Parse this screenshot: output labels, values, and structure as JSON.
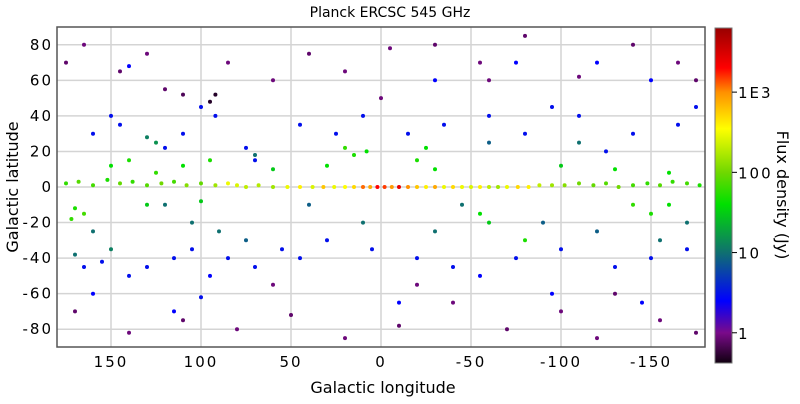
{
  "chart_data": {
    "type": "scatter",
    "title": "Planck ERCSC 545 GHz",
    "xlabel": "Galactic longitude",
    "ylabel": "Galactic latitude",
    "xlim": [
      180,
      -180
    ],
    "ylim": [
      -90,
      90
    ],
    "x_reversed": true,
    "grid": true,
    "xticks": [
      150,
      100,
      50,
      0,
      -50,
      -100,
      -150
    ],
    "xtick_labels": [
      "150",
      "100",
      "50",
      "0",
      "-50",
      "-100",
      "-150"
    ],
    "yticks": [
      80,
      60,
      40,
      20,
      0,
      -20,
      -40,
      -60,
      -80
    ],
    "ytick_labels": [
      "80",
      "60",
      "40",
      "20",
      "0",
      "-20",
      "-40",
      "-60",
      "-80"
    ],
    "colorbar": {
      "label": "Flux density (Jy)",
      "scale": "log",
      "range": [
        0.42,
        6300
      ],
      "ticks": [
        1,
        10,
        100,
        1000
      ],
      "tick_labels": [
        "1",
        "10",
        "100",
        "1E3"
      ],
      "colormap": [
        {
          "value": 0.42,
          "color": "#100010"
        },
        {
          "value": 1,
          "color": "#7a0a8a"
        },
        {
          "value": 2.5,
          "color": "#0000ff"
        },
        {
          "value": 10,
          "color": "#0f7070"
        },
        {
          "value": 40,
          "color": "#00e000"
        },
        {
          "value": 100,
          "color": "#70d800"
        },
        {
          "value": 350,
          "color": "#ffff00"
        },
        {
          "value": 1000,
          "color": "#ff9000"
        },
        {
          "value": 2000,
          "color": "#ff0000"
        },
        {
          "value": 6300,
          "color": "#990000"
        }
      ]
    },
    "point_fields": [
      "longitude",
      "latitude",
      "flux_jy"
    ],
    "points": [
      [
        175,
        2,
        60
      ],
      [
        168,
        3,
        80
      ],
      [
        160,
        1,
        70
      ],
      [
        152,
        4,
        50
      ],
      [
        145,
        2,
        90
      ],
      [
        138,
        3,
        60
      ],
      [
        130,
        1,
        80
      ],
      [
        122,
        2,
        100
      ],
      [
        115,
        3,
        70
      ],
      [
        108,
        1,
        120
      ],
      [
        100,
        2,
        90
      ],
      [
        92,
        1,
        150
      ],
      [
        85,
        2,
        300
      ],
      [
        80,
        1,
        250
      ],
      [
        75,
        0,
        200
      ],
      [
        68,
        1,
        180
      ],
      [
        60,
        0,
        150
      ],
      [
        52,
        0,
        300
      ],
      [
        45,
        0,
        400
      ],
      [
        38,
        0,
        250
      ],
      [
        32,
        0,
        600
      ],
      [
        26,
        0,
        300
      ],
      [
        20,
        0,
        350
      ],
      [
        15,
        0,
        500
      ],
      [
        10,
        0,
        1200
      ],
      [
        6,
        0,
        800
      ],
      [
        2,
        0,
        2000
      ],
      [
        -2,
        0,
        1500
      ],
      [
        -6,
        0,
        900
      ],
      [
        -10,
        0,
        2500
      ],
      [
        -15,
        0,
        1000
      ],
      [
        -20,
        0,
        600
      ],
      [
        -25,
        0,
        400
      ],
      [
        -30,
        0,
        800
      ],
      [
        -35,
        0,
        300
      ],
      [
        -40,
        0,
        500
      ],
      [
        -45,
        0,
        300
      ],
      [
        -50,
        0,
        250
      ],
      [
        -55,
        0,
        400
      ],
      [
        -60,
        0,
        200
      ],
      [
        -65,
        0,
        150
      ],
      [
        -70,
        0,
        300
      ],
      [
        -76,
        0,
        500
      ],
      [
        -82,
        0,
        400
      ],
      [
        -88,
        1,
        200
      ],
      [
        -95,
        1,
        150
      ],
      [
        -102,
        1,
        120
      ],
      [
        -110,
        2,
        100
      ],
      [
        -118,
        1,
        90
      ],
      [
        -125,
        2,
        80
      ],
      [
        -132,
        0,
        100
      ],
      [
        -140,
        1,
        70
      ],
      [
        -148,
        2,
        60
      ],
      [
        -155,
        1,
        80
      ],
      [
        -162,
        3,
        60
      ],
      [
        -170,
        2,
        70
      ],
      [
        -177,
        1,
        50
      ],
      [
        170,
        -12,
        50
      ],
      [
        165,
        -15,
        70
      ],
      [
        172,
        -18,
        60
      ],
      [
        150,
        12,
        40
      ],
      [
        140,
        15,
        50
      ],
      [
        125,
        8,
        60
      ],
      [
        110,
        12,
        40
      ],
      [
        100,
        -8,
        30
      ],
      [
        95,
        15,
        50
      ],
      [
        130,
        -10,
        30
      ],
      [
        20,
        22,
        60
      ],
      [
        15,
        18,
        50
      ],
      [
        8,
        20,
        40
      ],
      [
        -20,
        15,
        50
      ],
      [
        -25,
        22,
        40
      ],
      [
        -55,
        -15,
        40
      ],
      [
        -60,
        -20,
        30
      ],
      [
        -80,
        -30,
        50
      ],
      [
        -140,
        -10,
        60
      ],
      [
        -150,
        -15,
        50
      ],
      [
        -160,
        -10,
        40
      ],
      [
        -130,
        10,
        40
      ],
      [
        -100,
        12,
        30
      ],
      [
        -160,
        8,
        40
      ],
      [
        -30,
        10,
        40
      ],
      [
        30,
        12,
        40
      ],
      [
        60,
        10,
        30
      ],
      [
        160,
        -25,
        10
      ],
      [
        170,
        -38,
        10
      ],
      [
        150,
        -35,
        12
      ],
      [
        120,
        -10,
        10
      ],
      [
        130,
        28,
        12
      ],
      [
        125,
        25,
        15
      ],
      [
        105,
        -20,
        10
      ],
      [
        90,
        -25,
        10
      ],
      [
        75,
        -30,
        8
      ],
      [
        70,
        18,
        10
      ],
      [
        -30,
        -25,
        10
      ],
      [
        -45,
        -10,
        10
      ],
      [
        -90,
        -20,
        8
      ],
      [
        -120,
        -25,
        8
      ],
      [
        -170,
        -20,
        10
      ],
      [
        -155,
        -30,
        10
      ],
      [
        -110,
        25,
        10
      ],
      [
        -60,
        25,
        8
      ],
      [
        40,
        -10,
        8
      ],
      [
        10,
        -20,
        10
      ],
      [
        165,
        -45,
        3
      ],
      [
        155,
        -42,
        3
      ],
      [
        140,
        -50,
        3
      ],
      [
        130,
        -45,
        3
      ],
      [
        115,
        -40,
        3
      ],
      [
        105,
        -35,
        3
      ],
      [
        95,
        -50,
        2.5
      ],
      [
        85,
        -40,
        3
      ],
      [
        70,
        -45,
        3
      ],
      [
        55,
        -35,
        3
      ],
      [
        45,
        -40,
        3
      ],
      [
        30,
        -30,
        3
      ],
      [
        5,
        -35,
        3
      ],
      [
        -20,
        -40,
        3
      ],
      [
        -40,
        -45,
        3
      ],
      [
        -55,
        -50,
        2.5
      ],
      [
        -75,
        -40,
        3
      ],
      [
        -100,
        -35,
        3
      ],
      [
        -130,
        -45,
        3
      ],
      [
        -150,
        -40,
        3
      ],
      [
        -170,
        -35,
        3
      ],
      [
        150,
        40,
        3
      ],
      [
        145,
        35,
        3
      ],
      [
        160,
        30,
        3
      ],
      [
        120,
        22,
        3
      ],
      [
        110,
        30,
        3
      ],
      [
        75,
        22,
        3
      ],
      [
        70,
        15,
        3
      ],
      [
        45,
        35,
        3
      ],
      [
        25,
        30,
        3
      ],
      [
        10,
        40,
        3
      ],
      [
        -15,
        30,
        3
      ],
      [
        -35,
        35,
        3
      ],
      [
        -60,
        40,
        3
      ],
      [
        -80,
        30,
        3
      ],
      [
        -95,
        45,
        3
      ],
      [
        -110,
        40,
        3
      ],
      [
        -125,
        20,
        3
      ],
      [
        -140,
        30,
        3
      ],
      [
        -165,
        35,
        3
      ],
      [
        -175,
        45,
        3
      ],
      [
        100,
        45,
        3
      ],
      [
        92,
        40,
        3
      ],
      [
        -30,
        60,
        2.5
      ],
      [
        -75,
        70,
        2.5
      ],
      [
        -120,
        70,
        2.5
      ],
      [
        -150,
        60,
        2.5
      ],
      [
        140,
        68,
        2.5
      ],
      [
        160,
        -60,
        2.5
      ],
      [
        115,
        -70,
        2.5
      ],
      [
        100,
        -62,
        3
      ],
      [
        -10,
        -65,
        2.5
      ],
      [
        -95,
        -60,
        2.5
      ],
      [
        -145,
        -65,
        2.5
      ],
      [
        175,
        70,
        0.8
      ],
      [
        165,
        80,
        0.9
      ],
      [
        145,
        65,
        0.8
      ],
      [
        130,
        75,
        0.9
      ],
      [
        120,
        55,
        0.8
      ],
      [
        110,
        52,
        0.7
      ],
      [
        95,
        48,
        0.5
      ],
      [
        92,
        52,
        0.5
      ],
      [
        85,
        70,
        0.9
      ],
      [
        60,
        60,
        0.9
      ],
      [
        40,
        75,
        0.8
      ],
      [
        20,
        65,
        0.9
      ],
      [
        -5,
        78,
        0.9
      ],
      [
        -30,
        80,
        0.8
      ],
      [
        -55,
        70,
        0.9
      ],
      [
        -80,
        85,
        0.8
      ],
      [
        -110,
        62,
        0.9
      ],
      [
        -140,
        80,
        0.8
      ],
      [
        -165,
        70,
        0.9
      ],
      [
        -175,
        60,
        0.8
      ],
      [
        170,
        -70,
        0.8
      ],
      [
        140,
        -82,
        0.9
      ],
      [
        110,
        -75,
        0.8
      ],
      [
        80,
        -80,
        0.9
      ],
      [
        50,
        -72,
        0.8
      ],
      [
        20,
        -85,
        0.9
      ],
      [
        -10,
        -78,
        0.8
      ],
      [
        -40,
        -65,
        0.9
      ],
      [
        -70,
        -80,
        0.8
      ],
      [
        -100,
        -70,
        0.9
      ],
      [
        -130,
        -60,
        0.8
      ],
      [
        -155,
        -75,
        0.9
      ],
      [
        -175,
        -82,
        0.8
      ],
      [
        60,
        -55,
        0.9
      ],
      [
        -20,
        -55,
        0.9
      ],
      [
        -60,
        60,
        0.9
      ],
      [
        0,
        50,
        0.9
      ],
      [
        -120,
        -85,
        0.9
      ]
    ]
  }
}
